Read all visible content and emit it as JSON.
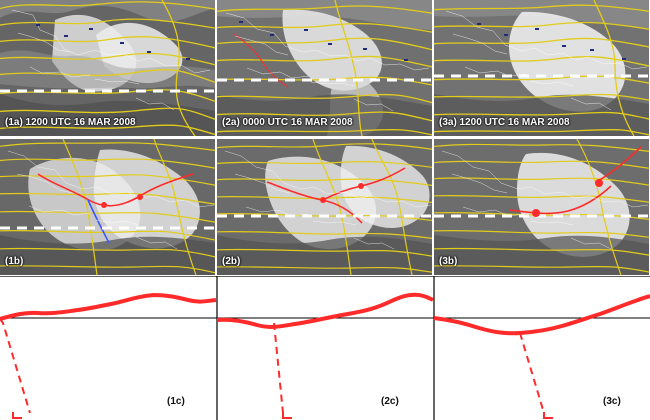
{
  "figure": {
    "top_row": [
      {
        "label": "(1a) 1200 UTC 16 MAR 2008"
      },
      {
        "label": "(2a) 0000 UTC 16 MAR 2008"
      },
      {
        "label": "(3a) 1200 UTC 16 MAR 2008"
      }
    ],
    "middle_row": [
      {
        "label": "(1b)"
      },
      {
        "label": "(2b)"
      },
      {
        "label": "(3b)"
      }
    ],
    "bottom_row": [
      {
        "label": "(1c)"
      },
      {
        "label": "(2c)"
      },
      {
        "label": "(3c)"
      }
    ],
    "colors": {
      "background": "#ffffff",
      "map_dark": "#5f5f5f",
      "map_mid": "#8a8a8a",
      "map_light": "#d6d6d6",
      "contour": "#e2cc1a",
      "front": "#ff2a2a",
      "front_blue": "#3b56ff",
      "dash": "#ffffff",
      "line_black": "#000000"
    },
    "icons": {
      "weather_symbol": "station-symbol",
      "pressure_center": "low-pressure-icon"
    }
  }
}
